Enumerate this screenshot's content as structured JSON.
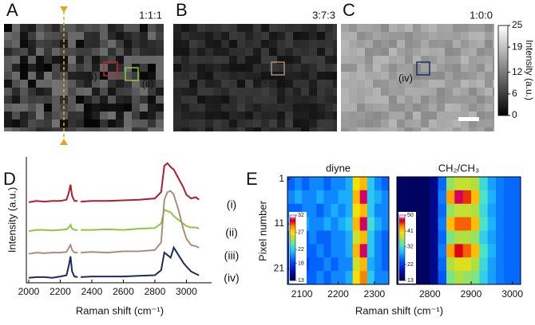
{
  "chart_data": [
    {
      "type": "image",
      "panel": "A",
      "label": "1:1:1",
      "annotations": [
        {
          "label": "(i)",
          "color": "#c0272d"
        },
        {
          "label": "(ii)",
          "color": "#8dc63f"
        }
      ]
    },
    {
      "type": "image",
      "panel": "B",
      "label": "3:7:3",
      "annotations": [
        {
          "label": "(iii)",
          "color": "#a89078"
        }
      ]
    },
    {
      "type": "image",
      "panel": "C",
      "label": "1:0:0",
      "annotations": [
        {
          "label": "(iv)",
          "color": "#1f2a5e"
        }
      ],
      "colorbar": {
        "label": "Intensity (a.u.)",
        "ylim": [
          0,
          25
        ],
        "yticks": [
          0,
          6,
          12,
          19,
          25
        ]
      }
    },
    {
      "type": "line",
      "panel": "D",
      "xlabel": "Raman shift (cm⁻¹)",
      "ylabel": "Intensity (a.u.)",
      "xlim": [
        1985,
        3160
      ],
      "xticks": [
        2000,
        2200,
        2400,
        2600,
        2800,
        3000
      ],
      "ylim": [
        0,
        10
      ],
      "x": [
        2000,
        2050,
        2100,
        2150,
        2200,
        2240,
        2255,
        2265,
        2275,
        2290,
        2310,
        2320,
        2330,
        2400,
        2500,
        2600,
        2700,
        2800,
        2840,
        2860,
        2880,
        2900,
        2920,
        2950,
        2980,
        3000,
        3030,
        3060,
        3080
      ],
      "series": [
        {
          "name": "(i)",
          "color": "#b01c2e",
          "values": [
            6.4,
            6.5,
            6.45,
            6.5,
            6.5,
            6.6,
            7.2,
            7.8,
            6.9,
            6.5,
            6.5,
            null,
            6.45,
            6.5,
            6.5,
            6.55,
            6.6,
            6.7,
            7.2,
            9.3,
            9.5,
            9.2,
            9.0,
            8.3,
            7.6,
            7.0,
            6.7,
            6.8,
            6.6
          ]
        },
        {
          "name": "(ii)",
          "color": "#8dc63f",
          "values": [
            4.1,
            4.2,
            4.2,
            4.15,
            4.2,
            4.25,
            4.4,
            4.6,
            4.3,
            4.2,
            4.2,
            null,
            4.2,
            4.2,
            4.25,
            4.2,
            4.3,
            4.35,
            4.7,
            5.8,
            5.7,
            5.6,
            5.3,
            5.0,
            4.7,
            4.5,
            4.4,
            4.4,
            4.3
          ]
        },
        {
          "name": "(iii)",
          "color": "#a89078",
          "values": [
            2.3,
            2.4,
            2.35,
            2.4,
            2.4,
            2.45,
            2.8,
            3.0,
            2.6,
            2.4,
            2.4,
            null,
            2.4,
            2.45,
            2.4,
            2.5,
            2.5,
            2.6,
            3.2,
            6.6,
            7.2,
            7.3,
            7.0,
            5.8,
            4.3,
            3.5,
            3.0,
            2.9,
            2.8
          ]
        },
        {
          "name": "(iv)",
          "color": "#1f2a5e",
          "values": [
            0.4,
            0.45,
            0.45,
            0.4,
            0.5,
            0.6,
            1.4,
            2.1,
            0.9,
            0.5,
            0.45,
            null,
            0.45,
            0.5,
            0.5,
            0.5,
            0.55,
            0.6,
            1.0,
            2.4,
            2.2,
            2.0,
            2.8,
            2.2,
            1.6,
            1.3,
            0.9,
            0.7,
            0.6
          ]
        }
      ]
    },
    {
      "type": "heatmap",
      "panel": "E",
      "title": "diyne",
      "ylabel": "Pixel number",
      "xlim": [
        2060,
        2340
      ],
      "xticks": [
        2100,
        2200,
        2300
      ],
      "ylim": [
        0.5,
        24.5
      ],
      "yticks": [
        1,
        11,
        21
      ],
      "x": [
        2070,
        2090,
        2110,
        2130,
        2150,
        2170,
        2190,
        2210,
        2230,
        2250,
        2270,
        2290,
        2310,
        2330
      ],
      "y": [
        2,
        5,
        8,
        11,
        14,
        17,
        20,
        23
      ],
      "clim": [
        13,
        32
      ],
      "cticks": [
        13,
        18,
        22,
        27,
        32
      ],
      "values": [
        [
          19,
          20,
          19,
          20,
          20,
          19,
          20,
          20,
          21,
          27,
          28,
          22,
          20,
          19
        ],
        [
          20,
          21,
          20,
          20,
          21,
          20,
          20,
          21,
          21,
          28,
          31,
          22,
          21,
          20
        ],
        [
          19,
          19,
          20,
          20,
          19,
          20,
          21,
          20,
          21,
          27,
          28,
          22,
          20,
          20
        ],
        [
          20,
          20,
          21,
          20,
          20,
          21,
          20,
          21,
          22,
          28,
          31,
          23,
          21,
          20
        ],
        [
          18,
          19,
          19,
          20,
          19,
          19,
          20,
          20,
          21,
          26,
          28,
          22,
          20,
          19
        ],
        [
          17,
          18,
          19,
          19,
          20,
          19,
          20,
          20,
          21,
          28,
          31,
          22,
          20,
          19
        ],
        [
          17,
          17,
          18,
          19,
          19,
          20,
          19,
          20,
          20,
          26,
          28,
          21,
          20,
          19
        ],
        [
          18,
          18,
          19,
          19,
          20,
          19,
          20,
          20,
          21,
          27,
          29,
          22,
          20,
          20
        ]
      ]
    },
    {
      "type": "heatmap",
      "title": "CH₂/CH₃",
      "xlabel": "Raman shift (cm⁻¹)",
      "xlim": [
        2720,
        3020
      ],
      "xticks": [
        2800,
        2900,
        3000
      ],
      "ylim": [
        0.5,
        24.5
      ],
      "x": [
        2730,
        2750,
        2770,
        2790,
        2810,
        2830,
        2850,
        2870,
        2890,
        2910,
        2930,
        2950,
        2970,
        2990,
        3010
      ],
      "y": [
        2,
        5,
        8,
        11,
        14,
        17,
        20,
        23
      ],
      "clim": [
        13,
        50
      ],
      "cticks": [
        13,
        22,
        32,
        41,
        50
      ],
      "values": [
        [
          14,
          14,
          14,
          14,
          16,
          25,
          36,
          38,
          38,
          37,
          32,
          28,
          26,
          25,
          25
        ],
        [
          14,
          14,
          14,
          14,
          16,
          26,
          43,
          48,
          46,
          42,
          33,
          29,
          26,
          25,
          25
        ],
        [
          14,
          14,
          14,
          14,
          16,
          25,
          36,
          38,
          38,
          37,
          32,
          28,
          26,
          25,
          25
        ],
        [
          14,
          14,
          14,
          14,
          16,
          26,
          42,
          45,
          45,
          42,
          33,
          29,
          26,
          25,
          25
        ],
        [
          14,
          14,
          14,
          14,
          16,
          25,
          35,
          37,
          37,
          36,
          31,
          28,
          26,
          25,
          25
        ],
        [
          14,
          14,
          14,
          14,
          16,
          26,
          43,
          47,
          45,
          42,
          33,
          29,
          26,
          25,
          25
        ],
        [
          14,
          14,
          14,
          14,
          16,
          25,
          37,
          39,
          39,
          37,
          32,
          28,
          26,
          25,
          25
        ],
        [
          14,
          14,
          14,
          14,
          16,
          24,
          35,
          37,
          36,
          35,
          31,
          28,
          26,
          25,
          25
        ]
      ]
    }
  ]
}
